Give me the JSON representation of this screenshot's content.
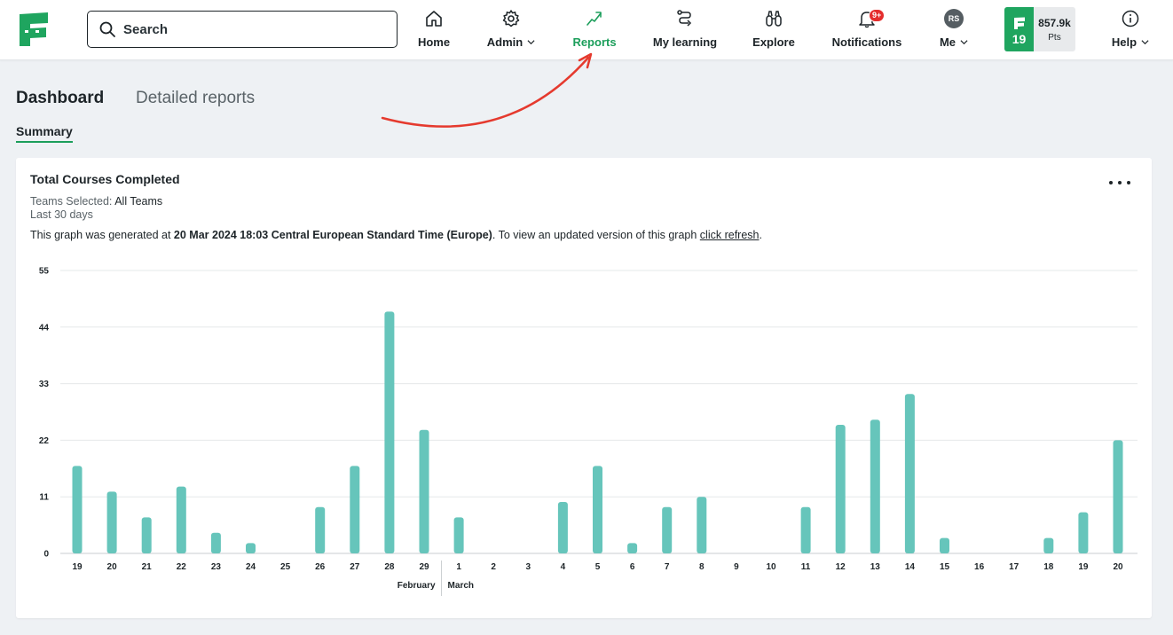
{
  "nav": {
    "search_placeholder": "Search",
    "items": [
      {
        "label": "Home",
        "icon": "home-icon"
      },
      {
        "label": "Admin",
        "icon": "gear-icon"
      },
      {
        "label": "Reports",
        "icon": "trend-icon"
      },
      {
        "label": "My learning",
        "icon": "path-icon"
      },
      {
        "label": "Explore",
        "icon": "binoculars-icon"
      },
      {
        "label": "Notifications",
        "icon": "bell-icon"
      },
      {
        "label": "Me",
        "icon": "avatar"
      },
      {
        "label": "Help",
        "icon": "info-icon"
      }
    ],
    "notifications_badge": "9+",
    "avatar_initials": "RS",
    "level": "19",
    "points_value": "857.9k",
    "points_unit": "Pts",
    "accent": "#1c9e5b"
  },
  "tabs": {
    "dashboard": "Dashboard",
    "detailed": "Detailed reports",
    "summary": "Summary"
  },
  "card": {
    "title": "Total Courses Completed",
    "teams_label": "Teams Selected:",
    "teams_value": "All Teams",
    "period": "Last 30 days",
    "generated_prefix": "This graph was generated at",
    "generated_time": "20 Mar 2024 18:03 Central European Standard Time (Europe)",
    "generated_mid": ". To view an updated version of this graph",
    "refresh_link": "click refresh",
    "generated_suffix": "."
  },
  "chart_data": {
    "type": "bar",
    "categories": [
      "19",
      "20",
      "21",
      "22",
      "23",
      "24",
      "25",
      "26",
      "27",
      "28",
      "29",
      "1",
      "2",
      "3",
      "4",
      "5",
      "6",
      "7",
      "8",
      "9",
      "10",
      "11",
      "12",
      "13",
      "14",
      "15",
      "16",
      "17",
      "18",
      "19",
      "20"
    ],
    "values": [
      17,
      12,
      7,
      13,
      4,
      2,
      0,
      9,
      17,
      47,
      24,
      7,
      0,
      0,
      10,
      17,
      2,
      9,
      11,
      0,
      0,
      9,
      25,
      26,
      31,
      3,
      0,
      0,
      3,
      8,
      22
    ],
    "month_labels": [
      "February",
      "March"
    ],
    "yticks": [
      0,
      11,
      22,
      33,
      44,
      55
    ],
    "ylim": [
      0,
      55
    ],
    "bar_color": "#66c5bb",
    "grid": true
  }
}
